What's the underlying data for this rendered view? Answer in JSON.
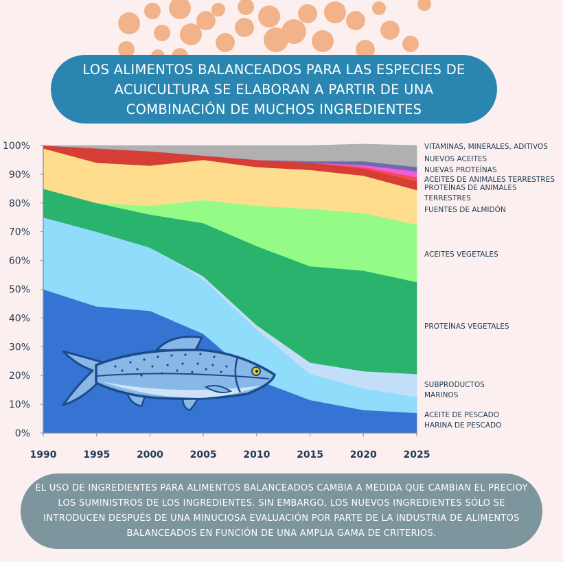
{
  "title": "LOS ALIMENTOS BALANCEADOS PARA LAS ESPECIES DE ACUICULTURA SE ELABORAN A PARTIR DE UNA COMBINACIÓN DE MUCHOS INGREDIENTES",
  "footer": "EL USO DE INGREDIENTES PARA ALIMENTOS BALANCEADOS CAMBIA A MEDIDA QUE CAMBIAN EL PRECIOY LOS SUMINISTROS DE LOS INGREDIENTES. SIN EMBARGO, LOS NUEVOS INGREDIENTES SÓLO SE INTRODUCEN DESPUÉS DE UNA MINUCIOSA EVALUACIÓN POR PARTE DE LA INDUSTRIA DE ALIMENTOS BALANCEADOS EN FUNCIÓN DE UNA AMPLIA GAMA DE CRITERIOS.",
  "colors": {
    "background": "#fbf0ef",
    "dots": "#f2b38a",
    "title_banner": "#2a86b0",
    "footer_banner": "#7d959c"
  },
  "chart_data": {
    "type": "area",
    "stacked": true,
    "x": [
      1990,
      1995,
      2000,
      2005,
      2010,
      2015,
      2020,
      2025
    ],
    "xtick_labels": [
      "1990",
      "1995",
      "2000",
      "2005",
      "2010",
      "2015",
      "2020",
      "2025"
    ],
    "ylim": [
      0,
      100
    ],
    "ytick_labels": [
      "0%",
      "10%",
      "20%",
      "30%",
      "40%",
      "50%",
      "60%",
      "70%",
      "80%",
      "90%",
      "100%"
    ],
    "grid": false,
    "legend_position": "right",
    "series": [
      {
        "name": "HARINA DE PESCADO",
        "color": "#3574d2",
        "values": [
          50,
          44,
          42.5,
          34.5,
          18.5,
          11.5,
          8,
          7
        ]
      },
      {
        "name": "ACEITE DE PESCADO",
        "color": "#8fdcfb",
        "values": [
          25,
          26,
          22,
          19,
          17.5,
          9,
          7.5,
          5.5
        ]
      },
      {
        "name": "SUBPRODUCTOS MARINOS",
        "color": "#c2def8",
        "values": [
          0,
          0,
          0,
          1,
          1.5,
          4,
          6,
          8
        ]
      },
      {
        "name": "PROTEÍNAS VEGETALES",
        "color": "#2ab36d",
        "values": [
          10,
          10,
          11.5,
          18.5,
          27.5,
          33.5,
          35,
          32
        ]
      },
      {
        "name": "ACEITES VEGETALES",
        "color": "#94fb87",
        "values": [
          0,
          0,
          3,
          8,
          14,
          20,
          20,
          20
        ]
      },
      {
        "name": "FUENTES DE ALMIDÓN",
        "color": "#fedd8e",
        "values": [
          14,
          14,
          14,
          14,
          13.5,
          13.5,
          13,
          12
        ]
      },
      {
        "name": "PROTEÍNAS DE ANIMALES TERRESTRES",
        "color": "#d63d35",
        "values": [
          1,
          5,
          5,
          1.5,
          2.5,
          2.5,
          2.5,
          3
        ]
      },
      {
        "name": "ACEITES DE ANIMALES TERRESTRES",
        "color": "#f44b52",
        "values": [
          0,
          0,
          0,
          0,
          0,
          0,
          0.5,
          1.5
        ]
      },
      {
        "name": "NUEVAS PROTEÍNAS",
        "color": "#f25adf",
        "values": [
          0,
          0,
          0,
          0,
          0,
          0,
          0.7,
          2
        ]
      },
      {
        "name": "NUEVOS ACEITES",
        "color": "#6f6aa8",
        "values": [
          0,
          0,
          0,
          0,
          0,
          0.5,
          1.3,
          1.5
        ]
      },
      {
        "name": "VITAMINAS, MINERALES, ADITIVOS",
        "color": "#b0b0b0",
        "values": [
          0,
          1,
          2,
          3.5,
          5,
          5.5,
          6,
          7.5
        ]
      }
    ]
  }
}
